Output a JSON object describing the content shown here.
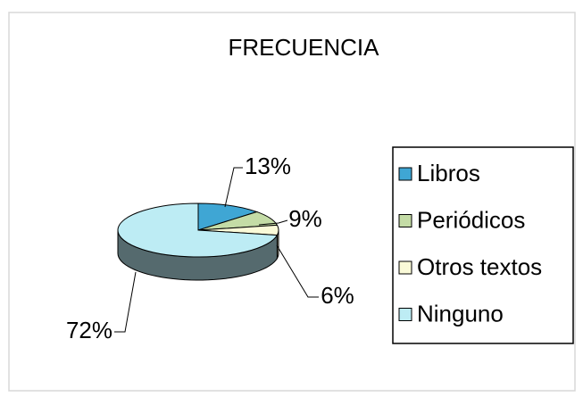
{
  "chart_data": {
    "type": "pie",
    "title": "FRECUENCIA",
    "categories": [
      "Libros",
      "Periódicos",
      "Otros textos",
      "Ninguno"
    ],
    "values": [
      13,
      9,
      6,
      72
    ],
    "value_labels": [
      "13%",
      "9%",
      "6%",
      "72%"
    ],
    "colors": [
      "#3fa6d4",
      "#c4dca6",
      "#fafad8",
      "#bdecf4"
    ],
    "legend": "right"
  }
}
